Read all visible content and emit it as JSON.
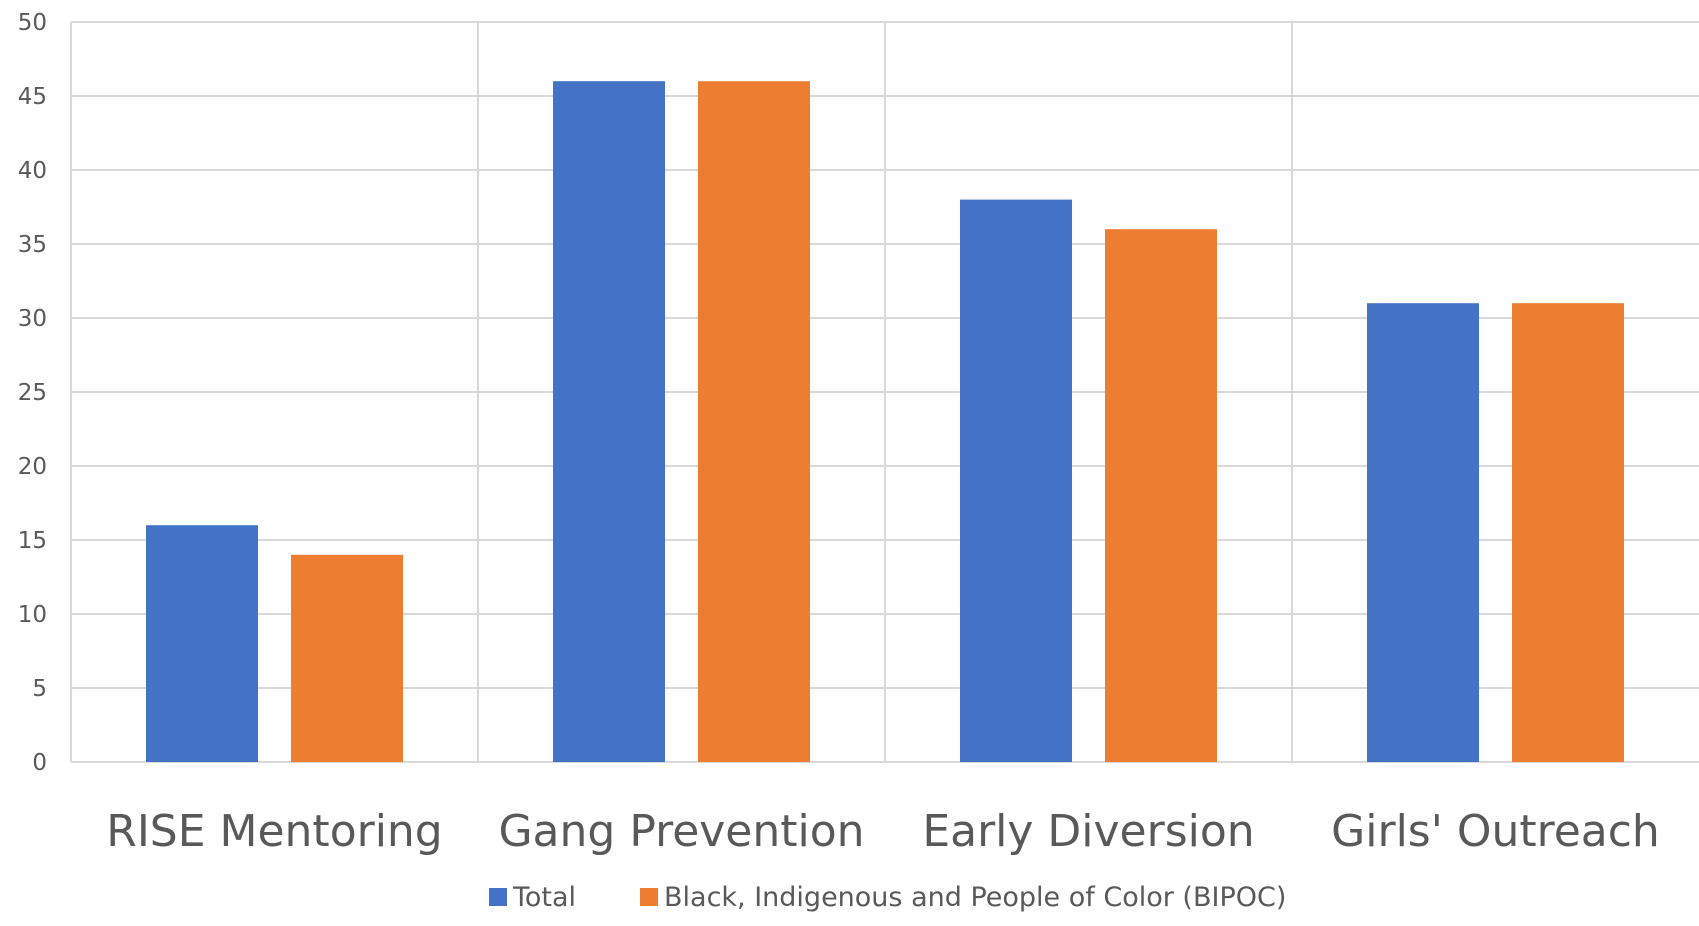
{
  "chart_data": {
    "type": "bar",
    "title": "",
    "xlabel": "",
    "ylabel": "",
    "categories": [
      "RISE Mentoring",
      "Gang Prevention",
      "Early Diversion",
      "Girls' Outreach"
    ],
    "series": [
      {
        "name": "Total",
        "color": "#4472C4",
        "values": [
          16,
          46,
          38,
          31
        ]
      },
      {
        "name": "Black, Indigenous and People of Color (BIPOC)",
        "color": "#ED7D31",
        "values": [
          14,
          46,
          36,
          31
        ]
      }
    ],
    "ylim": [
      0,
      50
    ],
    "yticks": [
      0,
      5,
      10,
      15,
      20,
      25,
      30,
      35,
      40,
      45,
      50
    ],
    "grid": {
      "horizontal": true,
      "vertical_category_separators": true
    },
    "legend": {
      "position": "bottom-center"
    }
  }
}
